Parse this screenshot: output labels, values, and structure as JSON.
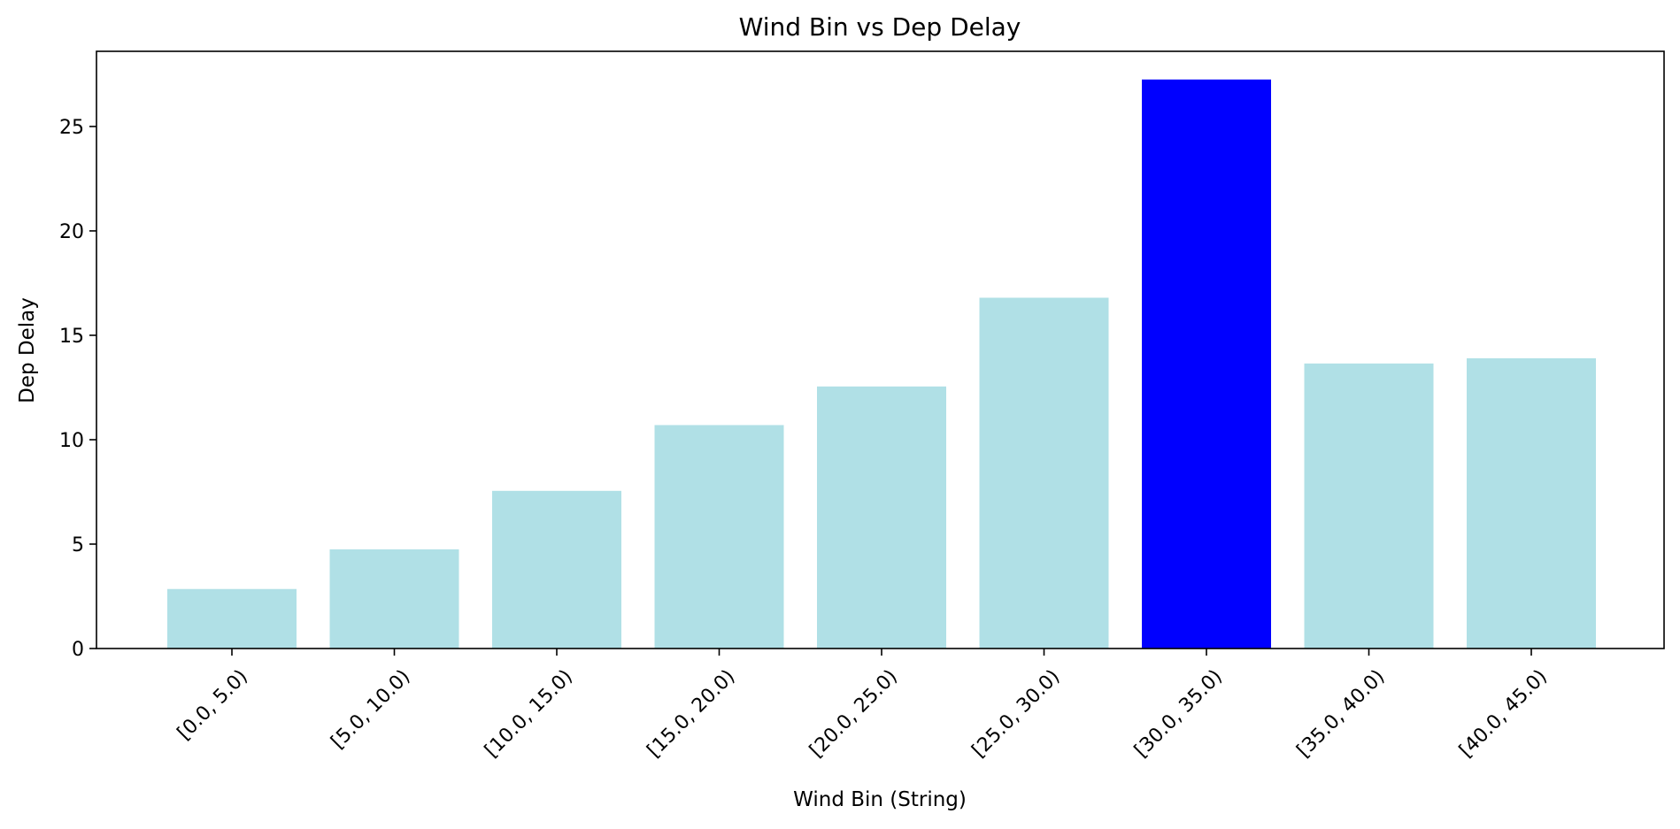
{
  "chart_data": {
    "type": "bar",
    "title": "Wind Bin vs Dep Delay",
    "xlabel": "Wind Bin (String)",
    "ylabel": "Dep Delay",
    "categories": [
      "[0.0, 5.0)",
      "[5.0, 10.0)",
      "[10.0, 15.0)",
      "[15.0, 20.0)",
      "[20.0, 25.0)",
      "[25.0, 30.0)",
      "[30.0, 35.0)",
      "[35.0, 40.0)",
      "[40.0, 45.0)"
    ],
    "values": [
      2.85,
      4.75,
      7.55,
      10.7,
      12.55,
      16.8,
      27.25,
      13.65,
      13.9
    ],
    "highlight_index": 6,
    "ylim": [
      0,
      28.6
    ],
    "yticks": [
      0,
      5,
      10,
      15,
      20,
      25
    ],
    "grid": false,
    "colors": {
      "bar": "#b0e0e6",
      "highlight": "#0000ff",
      "axis": "#000000"
    }
  }
}
